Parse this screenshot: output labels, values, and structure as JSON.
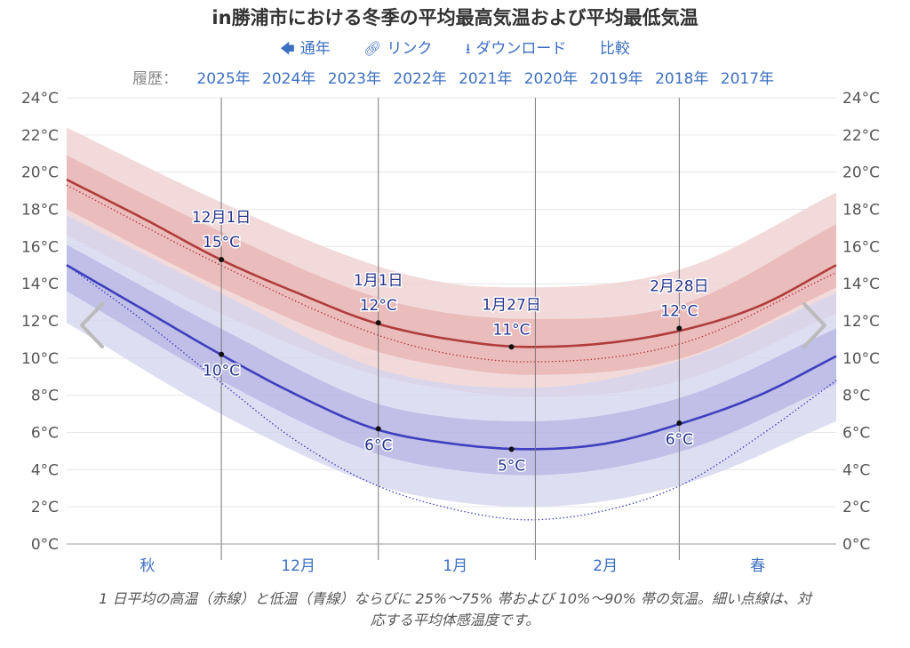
{
  "title": "in勝浦市における冬季の平均最高気温および平均最低気温",
  "links": {
    "annual": "通年",
    "link": "リンク",
    "download": "ダウンロード",
    "compare": "比較",
    "annual_icon": "arrow-left-icon",
    "link_icon": "link-icon",
    "download_icon": "download-icon"
  },
  "history": {
    "label": "履歴：",
    "years": [
      "2025年",
      "2024年",
      "2023年",
      "2022年",
      "2021年",
      "2020年",
      "2019年",
      "2018年",
      "2017年"
    ]
  },
  "caption": {
    "line1": "1 日平均の高温（赤線）と低温（青線）ならびに 25%～75% 帯および 10%～90% 帯の気温。細い点線は、対",
    "line2": "応する平均体感温度です。"
  },
  "chart_data": {
    "type": "area",
    "x_domain": [
      0,
      1
    ],
    "x_labels": [
      {
        "label": "秋",
        "x": 0.105
      },
      {
        "label": "12月",
        "x": 0.301
      },
      {
        "label": "1月",
        "x": 0.505
      },
      {
        "label": "2月",
        "x": 0.7
      },
      {
        "label": "春",
        "x": 0.898
      }
    ],
    "season_boundaries": [
      0.201,
      0.405,
      0.609,
      0.796
    ],
    "y_unit": "°C",
    "ylim": [
      0,
      24
    ],
    "y_ticks": [
      0,
      2,
      4,
      6,
      8,
      10,
      12,
      14,
      16,
      18,
      20,
      22,
      24
    ],
    "grid": true,
    "colors": {
      "high": "#b03c3c",
      "low": "#3f3fbf",
      "high_band_25_75": "#e6a9a9",
      "high_band_10_90": "#f0d3d3",
      "low_band_25_75": "#a5a5df",
      "low_band_10_90": "#d3d3ef"
    },
    "series": [
      {
        "key": "high",
        "x": [
          0,
          0.1,
          0.2,
          0.3,
          0.4,
          0.5,
          0.6,
          0.7,
          0.8,
          0.9,
          1.0
        ],
        "values": [
          19.6,
          17.5,
          15.3,
          13.5,
          11.9,
          11.0,
          10.6,
          10.8,
          11.5,
          12.8,
          15.0
        ]
      },
      {
        "key": "high_p25",
        "x": [
          0,
          0.2,
          0.4,
          0.5,
          0.6,
          0.8,
          1.0
        ],
        "values": [
          18.0,
          13.8,
          10.4,
          9.5,
          9.1,
          10.0,
          13.8
        ]
      },
      {
        "key": "high_p75",
        "x": [
          0,
          0.2,
          0.4,
          0.5,
          0.6,
          0.8,
          1.0
        ],
        "values": [
          20.9,
          16.8,
          13.3,
          12.4,
          12.1,
          12.9,
          17.2
        ]
      },
      {
        "key": "high_p10",
        "x": [
          0,
          0.2,
          0.4,
          0.5,
          0.6,
          0.8,
          1.0
        ],
        "values": [
          16.6,
          12.4,
          9.1,
          8.3,
          7.9,
          8.8,
          12.4
        ]
      },
      {
        "key": "high_p90",
        "x": [
          0,
          0.2,
          0.4,
          0.5,
          0.6,
          0.8,
          1.0
        ],
        "values": [
          22.4,
          18.4,
          15.0,
          14.0,
          13.8,
          14.8,
          18.9
        ]
      },
      {
        "key": "high_feels",
        "x": [
          0,
          0.2,
          0.4,
          0.5,
          0.6,
          0.8,
          1.0
        ],
        "values": [
          19.3,
          15.0,
          11.3,
          10.2,
          9.8,
          10.8,
          14.6
        ]
      },
      {
        "key": "low",
        "x": [
          0,
          0.1,
          0.2,
          0.3,
          0.4,
          0.5,
          0.6,
          0.7,
          0.8,
          0.9,
          1.0
        ],
        "values": [
          15.0,
          12.6,
          10.2,
          8.0,
          6.2,
          5.4,
          5.1,
          5.4,
          6.5,
          8.0,
          10.1
        ]
      },
      {
        "key": "low_p25",
        "x": [
          0,
          0.2,
          0.4,
          0.5,
          0.6,
          0.8,
          1.0
        ],
        "values": [
          13.6,
          8.8,
          4.9,
          4.0,
          3.7,
          5.0,
          8.6
        ]
      },
      {
        "key": "low_p75",
        "x": [
          0,
          0.2,
          0.4,
          0.5,
          0.6,
          0.8,
          1.0
        ],
        "values": [
          16.1,
          11.6,
          7.6,
          6.8,
          6.6,
          7.9,
          11.6
        ]
      },
      {
        "key": "low_p10",
        "x": [
          0,
          0.2,
          0.4,
          0.5,
          0.6,
          0.8,
          1.0
        ],
        "values": [
          11.9,
          7.0,
          3.2,
          2.3,
          2.0,
          3.2,
          6.6
        ]
      },
      {
        "key": "low_p90",
        "x": [
          0,
          0.2,
          0.4,
          0.5,
          0.6,
          0.8,
          1.0
        ],
        "values": [
          17.7,
          13.5,
          9.5,
          8.6,
          8.4,
          9.9,
          13.5
        ]
      },
      {
        "key": "low_feels",
        "x": [
          0,
          0.1,
          0.2,
          0.3,
          0.4,
          0.5,
          0.6,
          0.7,
          0.8,
          0.9,
          1.0
        ],
        "values": [
          15.0,
          12.0,
          8.7,
          5.5,
          3.2,
          1.9,
          1.3,
          1.8,
          3.2,
          5.8,
          8.8
        ]
      }
    ],
    "annotations": [
      {
        "x": 0.201,
        "value": 15.3,
        "date": "12月1日",
        "label": "15°C",
        "series": "high"
      },
      {
        "x": 0.405,
        "value": 11.9,
        "date": "1月1日",
        "label": "12°C",
        "series": "high"
      },
      {
        "x": 0.578,
        "value": 10.6,
        "date": "1月27日",
        "label": "11°C",
        "series": "high"
      },
      {
        "x": 0.796,
        "value": 11.6,
        "date": "2月28日",
        "label": "12°C",
        "series": "high"
      },
      {
        "x": 0.201,
        "value": 10.2,
        "label": "10°C",
        "series": "low"
      },
      {
        "x": 0.405,
        "value": 6.2,
        "label": "6°C",
        "series": "low"
      },
      {
        "x": 0.578,
        "value": 5.1,
        "label": "5°C",
        "series": "low"
      },
      {
        "x": 0.796,
        "value": 6.5,
        "label": "6°C",
        "series": "low"
      }
    ]
  },
  "nav": {
    "prev_icon": "chevron-left-icon",
    "next_icon": "chevron-right-icon"
  }
}
